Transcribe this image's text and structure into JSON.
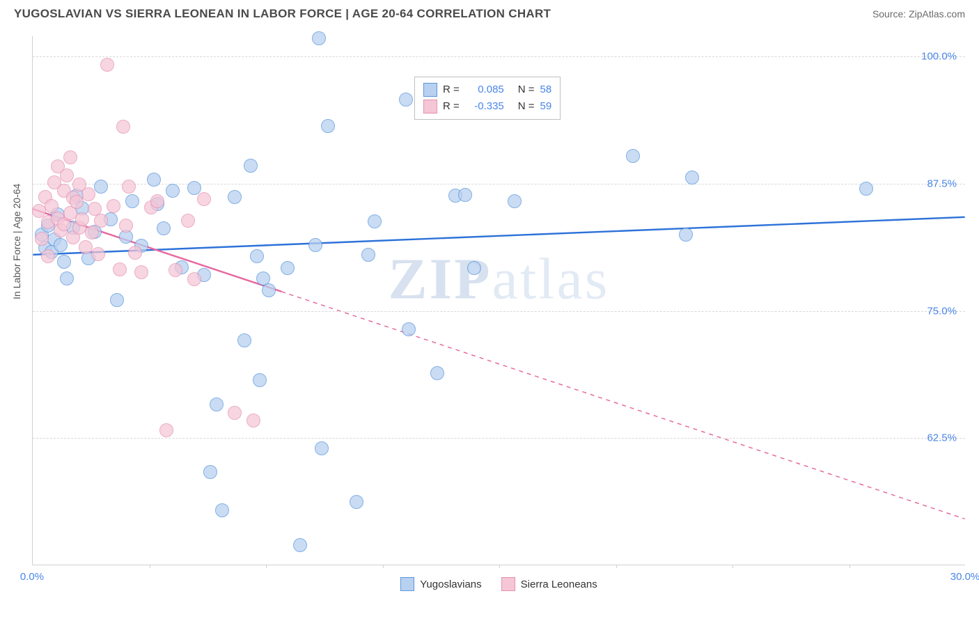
{
  "header": {
    "title": "YUGOSLAVIAN VS SIERRA LEONEAN IN LABOR FORCE | AGE 20-64 CORRELATION CHART",
    "source": "Source: ZipAtlas.com"
  },
  "watermark": {
    "z": "ZIP",
    "rest": "atlas"
  },
  "chart": {
    "type": "scatter",
    "ylabel": "In Labor Force | Age 20-64",
    "xlim": [
      0,
      30
    ],
    "ylim": [
      50,
      102
    ],
    "background_color": "#ffffff",
    "grid_color": "#d8d8d8",
    "axis_color": "#d0d0d0",
    "tick_label_color": "#4a86e8",
    "tick_fontsize": 15,
    "label_fontsize": 14,
    "label_color": "#555555",
    "yticks": [
      {
        "value": 62.5,
        "label": "62.5%"
      },
      {
        "value": 75.0,
        "label": "75.0%"
      },
      {
        "value": 87.5,
        "label": "87.5%"
      },
      {
        "value": 100.0,
        "label": "100.0%"
      }
    ],
    "xticks": [
      {
        "value": 0,
        "label": "0.0%"
      },
      {
        "value": 30,
        "label": "30.0%"
      }
    ],
    "x_minor_ticks": [
      3.75,
      7.5,
      11.25,
      15,
      18.75,
      22.5,
      26.25
    ],
    "series": [
      {
        "name": "Yugoslavians",
        "fill_color": "#b8d1f0",
        "stroke_color": "#5a95dd",
        "marker_opacity": 0.75,
        "marker_radius": 10,
        "line_color": "#2d72d9",
        "line_width": 2.5,
        "line_dash": "solid",
        "regression": {
          "x1": 0,
          "y1": 80.5,
          "x2": 30,
          "y2": 84.2
        },
        "correlation": {
          "R": "0.085",
          "N": "58"
        },
        "points": [
          {
            "x": 0.3,
            "y": 82.5
          },
          {
            "x": 0.4,
            "y": 81.2
          },
          {
            "x": 0.5,
            "y": 83.4
          },
          {
            "x": 0.6,
            "y": 80.8
          },
          {
            "x": 0.7,
            "y": 82.0
          },
          {
            "x": 0.8,
            "y": 84.5
          },
          {
            "x": 0.9,
            "y": 81.5
          },
          {
            "x": 1.0,
            "y": 79.8
          },
          {
            "x": 1.1,
            "y": 78.2
          },
          {
            "x": 1.3,
            "y": 83.2
          },
          {
            "x": 1.4,
            "y": 86.3
          },
          {
            "x": 1.6,
            "y": 85.1
          },
          {
            "x": 1.8,
            "y": 80.2
          },
          {
            "x": 2.0,
            "y": 82.8
          },
          {
            "x": 2.2,
            "y": 87.2
          },
          {
            "x": 2.5,
            "y": 84.0
          },
          {
            "x": 2.7,
            "y": 76.1
          },
          {
            "x": 3.0,
            "y": 82.3
          },
          {
            "x": 3.2,
            "y": 85.8
          },
          {
            "x": 3.5,
            "y": 81.4
          },
          {
            "x": 3.9,
            "y": 87.9
          },
          {
            "x": 4.0,
            "y": 85.5
          },
          {
            "x": 4.2,
            "y": 83.1
          },
          {
            "x": 4.5,
            "y": 86.8
          },
          {
            "x": 4.8,
            "y": 79.3
          },
          {
            "x": 5.2,
            "y": 87.1
          },
          {
            "x": 5.5,
            "y": 78.5
          },
          {
            "x": 5.7,
            "y": 59.2
          },
          {
            "x": 5.9,
            "y": 65.8
          },
          {
            "x": 6.1,
            "y": 55.4
          },
          {
            "x": 6.5,
            "y": 86.2
          },
          {
            "x": 6.8,
            "y": 72.1
          },
          {
            "x": 7.0,
            "y": 89.3
          },
          {
            "x": 7.2,
            "y": 80.4
          },
          {
            "x": 7.3,
            "y": 68.2
          },
          {
            "x": 7.4,
            "y": 78.2
          },
          {
            "x": 7.6,
            "y": 77.0
          },
          {
            "x": 8.2,
            "y": 79.2
          },
          {
            "x": 8.6,
            "y": 52.0
          },
          {
            "x": 9.1,
            "y": 81.5
          },
          {
            "x": 9.2,
            "y": 101.8
          },
          {
            "x": 9.3,
            "y": 61.5
          },
          {
            "x": 9.5,
            "y": 93.2
          },
          {
            "x": 10.4,
            "y": 56.2
          },
          {
            "x": 10.8,
            "y": 80.5
          },
          {
            "x": 11.0,
            "y": 83.8
          },
          {
            "x": 12.0,
            "y": 95.8
          },
          {
            "x": 12.1,
            "y": 73.2
          },
          {
            "x": 13.0,
            "y": 68.9
          },
          {
            "x": 13.6,
            "y": 86.3
          },
          {
            "x": 13.9,
            "y": 86.4
          },
          {
            "x": 14.2,
            "y": 79.2
          },
          {
            "x": 15.5,
            "y": 85.8
          },
          {
            "x": 19.3,
            "y": 90.2
          },
          {
            "x": 21.0,
            "y": 82.5
          },
          {
            "x": 21.2,
            "y": 88.1
          },
          {
            "x": 26.8,
            "y": 87.0
          }
        ]
      },
      {
        "name": "Sierra Leoneans",
        "fill_color": "#f5c6d6",
        "stroke_color": "#e48fb0",
        "marker_opacity": 0.72,
        "marker_radius": 10,
        "line_color": "#e76aa0",
        "line_width": 2.5,
        "line_dash": "dashed",
        "regression": {
          "x1": 0,
          "y1": 85.0,
          "x2": 30,
          "y2": 54.5
        },
        "regression_solid_until_x": 8.0,
        "correlation": {
          "R": "-0.335",
          "N": "59"
        },
        "points": [
          {
            "x": 0.2,
            "y": 84.8
          },
          {
            "x": 0.3,
            "y": 82.1
          },
          {
            "x": 0.4,
            "y": 86.2
          },
          {
            "x": 0.5,
            "y": 83.7
          },
          {
            "x": 0.5,
            "y": 80.4
          },
          {
            "x": 0.6,
            "y": 85.3
          },
          {
            "x": 0.7,
            "y": 87.6
          },
          {
            "x": 0.8,
            "y": 84.1
          },
          {
            "x": 0.8,
            "y": 89.2
          },
          {
            "x": 0.9,
            "y": 82.9
          },
          {
            "x": 1.0,
            "y": 86.8
          },
          {
            "x": 1.0,
            "y": 83.5
          },
          {
            "x": 1.1,
            "y": 88.3
          },
          {
            "x": 1.2,
            "y": 84.6
          },
          {
            "x": 1.2,
            "y": 90.1
          },
          {
            "x": 1.3,
            "y": 82.2
          },
          {
            "x": 1.3,
            "y": 86.1
          },
          {
            "x": 1.4,
            "y": 85.7
          },
          {
            "x": 1.5,
            "y": 83.2
          },
          {
            "x": 1.5,
            "y": 87.4
          },
          {
            "x": 1.6,
            "y": 84.0
          },
          {
            "x": 1.7,
            "y": 81.3
          },
          {
            "x": 1.8,
            "y": 86.5
          },
          {
            "x": 1.9,
            "y": 82.7
          },
          {
            "x": 2.0,
            "y": 85.0
          },
          {
            "x": 2.1,
            "y": 80.6
          },
          {
            "x": 2.2,
            "y": 83.9
          },
          {
            "x": 2.4,
            "y": 99.2
          },
          {
            "x": 2.6,
            "y": 85.3
          },
          {
            "x": 2.8,
            "y": 79.1
          },
          {
            "x": 2.9,
            "y": 93.1
          },
          {
            "x": 3.0,
            "y": 83.4
          },
          {
            "x": 3.1,
            "y": 87.2
          },
          {
            "x": 3.3,
            "y": 80.7
          },
          {
            "x": 3.5,
            "y": 78.8
          },
          {
            "x": 3.8,
            "y": 85.2
          },
          {
            "x": 4.0,
            "y": 85.8
          },
          {
            "x": 4.3,
            "y": 63.3
          },
          {
            "x": 4.6,
            "y": 79.0
          },
          {
            "x": 5.0,
            "y": 83.9
          },
          {
            "x": 5.2,
            "y": 78.1
          },
          {
            "x": 5.5,
            "y": 86.0
          },
          {
            "x": 6.5,
            "y": 65.0
          },
          {
            "x": 7.1,
            "y": 64.2
          }
        ]
      }
    ]
  },
  "legend_correlation": {
    "R_label": "R =",
    "N_label": "N ="
  }
}
